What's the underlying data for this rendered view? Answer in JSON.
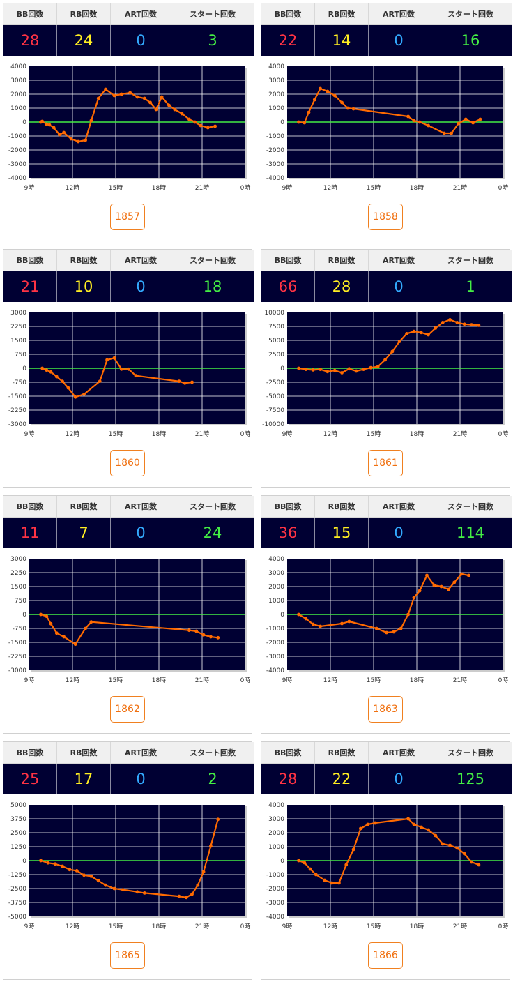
{
  "headers": {
    "bb": "BB回数",
    "rb": "RB回数",
    "art": "ART回数",
    "start": "スタート回数"
  },
  "colors": {
    "plot_bg": "#000033",
    "line": "#ff6a00",
    "zero": "#44ee44",
    "bb": "#ff3344",
    "rb": "#ffee22",
    "art": "#33aaff",
    "start": "#44ee44"
  },
  "x_ticks": [
    "9時",
    "12時",
    "15時",
    "18時",
    "21時",
    "0時"
  ],
  "machines": [
    {
      "number": "1857",
      "bb": "28",
      "rb": "24",
      "art": "0",
      "start": "3",
      "chart_data": {
        "type": "line",
        "xlim": [
          9,
          24
        ],
        "ylim": [
          -4000,
          4000
        ],
        "yticks": [
          "4000",
          "3000",
          "2000",
          "1000",
          "0",
          "-1000",
          "-2000",
          "-3000",
          "-4000"
        ],
        "x": [
          9.8,
          9.9,
          10.2,
          10.4,
          10.7,
          11.1,
          11.4,
          11.9,
          12.4,
          12.9,
          13.3,
          13.8,
          14.3,
          14.9,
          15.4,
          16.0,
          16.5,
          17.0,
          17.4,
          17.8,
          18.2,
          18.7,
          19.1,
          19.6,
          20.1,
          20.5,
          20.9,
          21.4,
          21.9
        ],
        "y": [
          0,
          50,
          -150,
          -200,
          -400,
          -900,
          -750,
          -1200,
          -1400,
          -1300,
          100,
          1700,
          2350,
          1900,
          2000,
          2100,
          1800,
          1700,
          1400,
          900,
          1800,
          1200,
          900,
          600,
          200,
          0,
          -250,
          -400,
          -300
        ]
      }
    },
    {
      "number": "1858",
      "bb": "22",
      "rb": "14",
      "art": "0",
      "start": "16",
      "chart_data": {
        "type": "line",
        "xlim": [
          9,
          24
        ],
        "ylim": [
          -4000,
          4000
        ],
        "yticks": [
          "4000",
          "3000",
          "2000",
          "1000",
          "0",
          "-1000",
          "-2000",
          "-3000",
          "-4000"
        ],
        "x": [
          9.8,
          10.2,
          10.5,
          10.9,
          11.3,
          11.8,
          12.3,
          12.8,
          13.2,
          13.6,
          17.4,
          17.8,
          18.2,
          18.8,
          19.9,
          20.4,
          20.9,
          21.4,
          21.9,
          22.4
        ],
        "y": [
          0,
          -50,
          700,
          1600,
          2400,
          2200,
          1900,
          1400,
          1000,
          950,
          400,
          100,
          0,
          -250,
          -800,
          -800,
          -100,
          200,
          -50,
          200
        ]
      }
    },
    {
      "number": "1860",
      "bb": "21",
      "rb": "10",
      "art": "0",
      "start": "18",
      "chart_data": {
        "type": "line",
        "xlim": [
          9,
          24
        ],
        "ylim": [
          -3000,
          3000
        ],
        "yticks": [
          "3000",
          "2250",
          "1500",
          "750",
          "0",
          "-750",
          "-1500",
          "-2250",
          "-3000"
        ],
        "x": [
          9.9,
          10.2,
          10.5,
          10.9,
          11.3,
          11.7,
          12.2,
          12.8,
          13.9,
          14.4,
          14.9,
          15.4,
          15.9,
          16.4,
          19.4,
          19.8,
          20.3
        ],
        "y": [
          0,
          -100,
          -200,
          -450,
          -700,
          -1050,
          -1550,
          -1400,
          -700,
          450,
          550,
          -50,
          -50,
          -400,
          -700,
          -800,
          -750
        ]
      }
    },
    {
      "number": "1861",
      "bb": "66",
      "rb": "28",
      "art": "0",
      "start": "1",
      "chart_data": {
        "type": "line",
        "xlim": [
          9,
          24
        ],
        "ylim": [
          -10000,
          10000
        ],
        "yticks": [
          "10000",
          "7500",
          "5000",
          "2500",
          "0",
          "-2500",
          "-5000",
          "-7500",
          "-10000"
        ],
        "x": [
          9.8,
          10.3,
          10.8,
          11.3,
          11.8,
          12.3,
          12.8,
          13.3,
          13.8,
          14.3,
          14.8,
          15.3,
          15.8,
          16.3,
          16.8,
          17.3,
          17.8,
          18.3,
          18.8,
          19.3,
          19.8,
          20.3,
          20.8,
          21.3,
          21.8,
          22.3
        ],
        "y": [
          0,
          -200,
          -300,
          -200,
          -600,
          -400,
          -800,
          -100,
          -500,
          -200,
          100,
          300,
          1500,
          3000,
          4800,
          6200,
          6600,
          6400,
          6000,
          7200,
          8200,
          8700,
          8200,
          7900,
          7800,
          7700
        ]
      }
    },
    {
      "number": "1862",
      "bb": "11",
      "rb": "7",
      "art": "0",
      "start": "24",
      "chart_data": {
        "type": "line",
        "xlim": [
          9,
          24
        ],
        "ylim": [
          -3000,
          3000
        ],
        "yticks": [
          "3000",
          "2250",
          "1500",
          "750",
          "0",
          "-750",
          "-1500",
          "-2250",
          "-3000"
        ],
        "x": [
          9.8,
          10.2,
          10.5,
          10.9,
          11.4,
          12.2,
          12.9,
          13.3,
          20.1,
          20.6,
          21.1,
          21.6,
          22.1
        ],
        "y": [
          0,
          -100,
          -500,
          -1000,
          -1200,
          -1600,
          -750,
          -400,
          -850,
          -900,
          -1100,
          -1200,
          -1250
        ]
      }
    },
    {
      "number": "1863",
      "bb": "36",
      "rb": "15",
      "art": "0",
      "start": "114",
      "chart_data": {
        "type": "line",
        "xlim": [
          9,
          24
        ],
        "ylim": [
          -4000,
          4000
        ],
        "yticks": [
          "4000",
          "3000",
          "2000",
          "1000",
          "0",
          "-1000",
          "-2000",
          "-3000",
          "-4000"
        ],
        "x": [
          9.8,
          10.3,
          10.8,
          11.3,
          12.8,
          13.3,
          15.2,
          15.9,
          16.4,
          16.9,
          17.4,
          17.8,
          18.2,
          18.7,
          19.2,
          19.7,
          20.2,
          20.6,
          21.1,
          21.6
        ],
        "y": [
          0,
          -300,
          -700,
          -850,
          -650,
          -500,
          -1000,
          -1300,
          -1250,
          -1000,
          0,
          1200,
          1700,
          2800,
          2100,
          2000,
          1800,
          2300,
          2900,
          2800
        ]
      }
    },
    {
      "number": "1865",
      "bb": "25",
      "rb": "17",
      "art": "0",
      "start": "2",
      "chart_data": {
        "type": "line",
        "xlim": [
          9,
          24
        ],
        "ylim": [
          -5000,
          5000
        ],
        "yticks": [
          "5000",
          "3750",
          "2500",
          "1250",
          "0",
          "-1250",
          "-2500",
          "-3750",
          "-5000"
        ],
        "x": [
          9.8,
          10.3,
          10.8,
          11.3,
          11.8,
          12.3,
          12.8,
          13.3,
          13.8,
          14.3,
          14.9,
          15.5,
          16.5,
          17.0,
          19.4,
          19.9,
          20.3,
          20.7,
          21.1,
          21.6,
          22.1
        ],
        "y": [
          0,
          -200,
          -300,
          -500,
          -800,
          -900,
          -1300,
          -1400,
          -1800,
          -2200,
          -2500,
          -2600,
          -2800,
          -2900,
          -3200,
          -3300,
          -3000,
          -2200,
          -1000,
          1300,
          3700
        ]
      }
    },
    {
      "number": "1866",
      "bb": "28",
      "rb": "22",
      "art": "0",
      "start": "125",
      "chart_data": {
        "type": "line",
        "xlim": [
          9,
          24
        ],
        "ylim": [
          -4000,
          4000
        ],
        "yticks": [
          "4000",
          "3000",
          "2000",
          "1000",
          "0",
          "-1000",
          "-2000",
          "-3000",
          "-4000"
        ],
        "x": [
          9.8,
          10.2,
          10.6,
          11.0,
          11.6,
          12.1,
          12.6,
          13.1,
          13.6,
          14.1,
          14.6,
          15.1,
          17.4,
          17.8,
          18.3,
          18.8,
          19.3,
          19.8,
          20.3,
          20.8,
          21.3,
          21.8,
          22.3
        ],
        "y": [
          0,
          -150,
          -600,
          -1000,
          -1400,
          -1600,
          -1600,
          -300,
          800,
          2300,
          2600,
          2700,
          3000,
          2600,
          2400,
          2200,
          1800,
          1200,
          1100,
          900,
          500,
          -100,
          -300
        ]
      }
    }
  ]
}
